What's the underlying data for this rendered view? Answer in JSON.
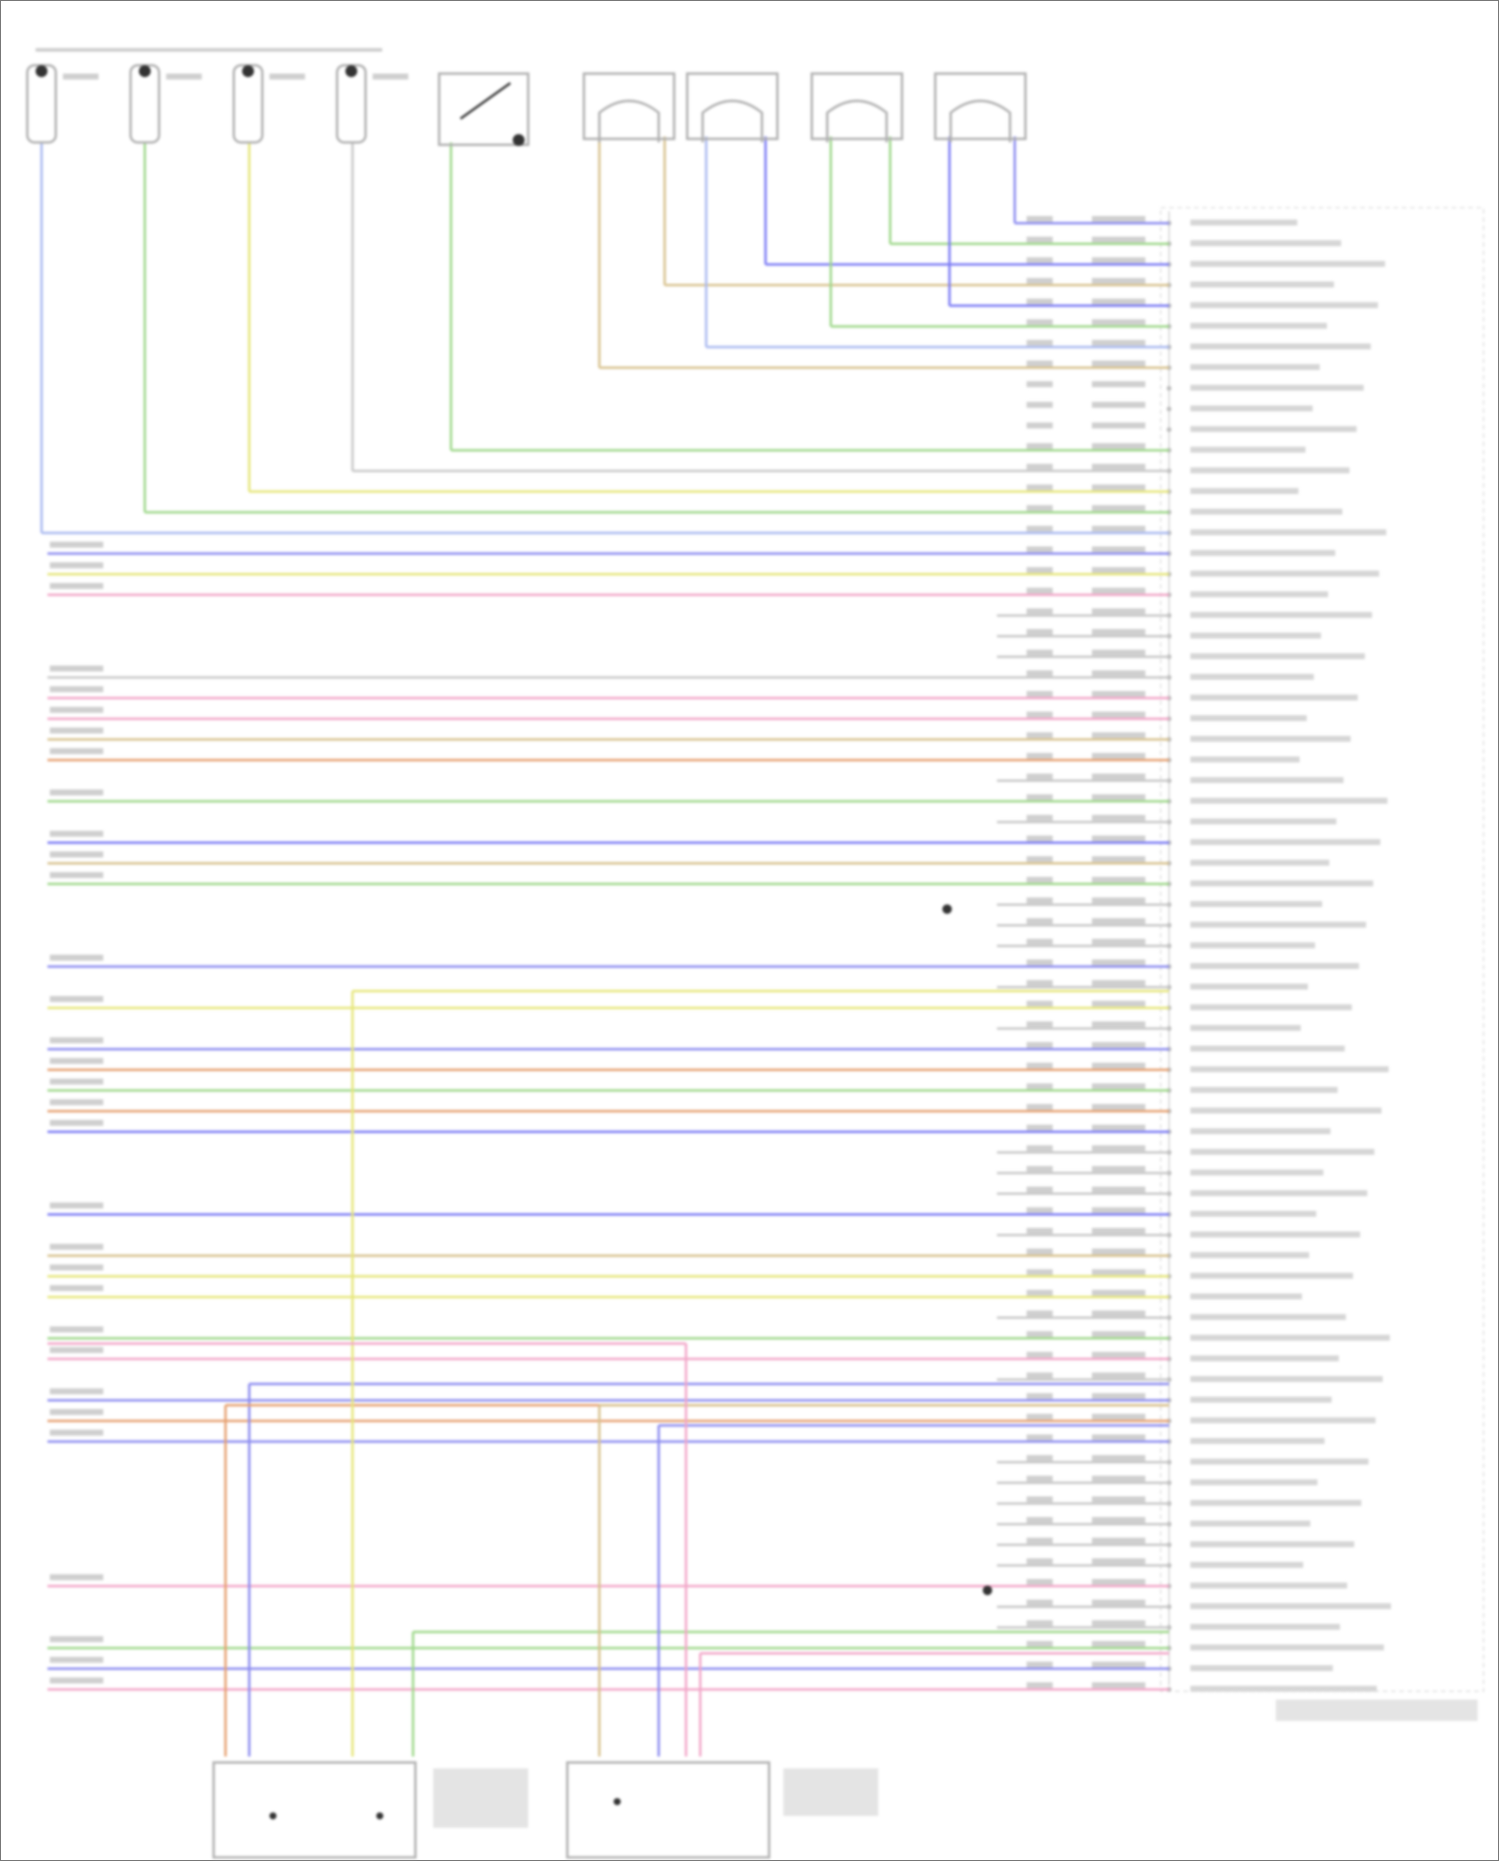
{
  "diagram": {
    "type": "wiring-diagram",
    "colors": {
      "purple": "#8c8cf0",
      "green": "#9ed88a",
      "blue": "#7b7bf5",
      "tan": "#d8c28e",
      "lightblue": "#a9b9f0",
      "yellow": "#e6e67a",
      "pink": "#f2a6c8",
      "orange": "#e6a070",
      "gray": "#c8c8c8",
      "component": "#b0b0b0",
      "dark": "#333333"
    },
    "top_sensors": 4,
    "fuel_injectors": 4,
    "connector_rows": [
      "purple",
      "green",
      "blue",
      "tan",
      "blue",
      "green",
      "lightblue",
      "tan",
      null,
      null,
      null,
      "green",
      "gray",
      "yellow",
      "green",
      "lightblue",
      "purple",
      "yellow",
      "pink",
      "gray",
      "gray",
      "gray",
      "gray",
      "pink",
      "pink",
      "tan",
      "orange",
      "gray",
      "green",
      "gray",
      "blue",
      "tan",
      "green",
      "gray",
      "gray",
      "gray",
      "purple",
      "gray",
      "yellow",
      "gray",
      "purple",
      "orange",
      "green",
      "orange",
      "blue",
      "gray",
      "gray",
      "gray",
      "blue",
      "gray",
      "tan",
      "yellow",
      "yellow",
      "gray",
      "green",
      "pink",
      "gray",
      "purple",
      "orange",
      "purple",
      "gray",
      "gray",
      "gray",
      "gray",
      "gray",
      "gray",
      "pink",
      "gray",
      "gray",
      "green",
      "purple",
      "pink"
    ]
  }
}
